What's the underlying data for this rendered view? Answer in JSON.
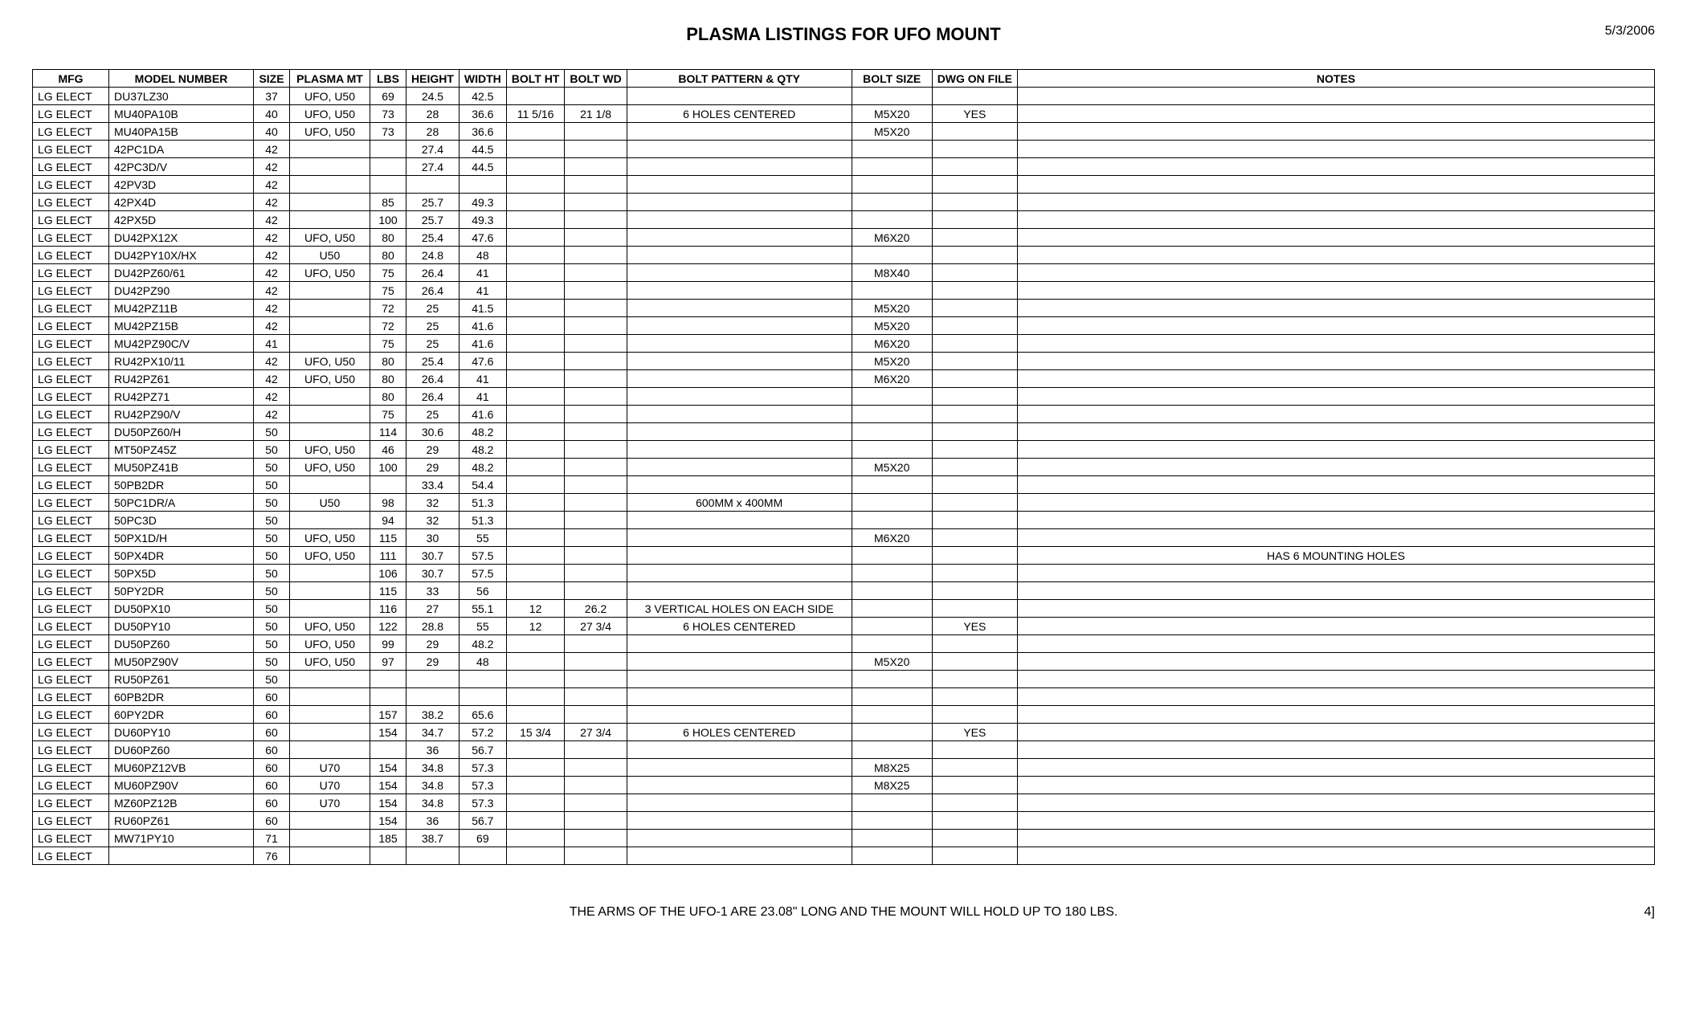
{
  "header": {
    "title": "PLASMA LISTINGS FOR UFO MOUNT",
    "date": "5/3/2006"
  },
  "footer": {
    "text": "THE ARMS OF THE UFO-1 ARE 23.08\" LONG AND THE MOUNT WILL HOLD UP TO 180 LBS.",
    "page": "4]"
  },
  "table": {
    "columns": [
      "MFG",
      "MODEL NUMBER",
      "SIZE",
      "PLASMA MT",
      "LBS",
      "HEIGHT",
      "WIDTH",
      "BOLT HT",
      "BOLT WD",
      "BOLT PATTERN & QTY",
      "BOLT SIZE",
      "DWG ON FILE",
      "NOTES"
    ],
    "align": [
      "l",
      "l",
      "c",
      "c",
      "c",
      "c",
      "c",
      "c",
      "c",
      "c",
      "c",
      "c",
      "c"
    ],
    "rows": [
      [
        "LG ELECT",
        "DU37LZ30",
        "37",
        "UFO, U50",
        "69",
        "24.5",
        "42.5",
        "",
        "",
        "",
        "",
        "",
        ""
      ],
      [
        "LG ELECT",
        "MU40PA10B",
        "40",
        "UFO, U50",
        "73",
        "28",
        "36.6",
        "11   5/16",
        "21 1/8",
        "6 HOLES CENTERED",
        "M5X20",
        "YES",
        ""
      ],
      [
        "LG ELECT",
        "MU40PA15B",
        "40",
        "UFO, U50",
        "73",
        "28",
        "36.6",
        "",
        "",
        "",
        "M5X20",
        "",
        ""
      ],
      [
        "LG ELECT",
        "42PC1DA",
        "42",
        "",
        "",
        "27.4",
        "44.5",
        "",
        "",
        "",
        "",
        "",
        ""
      ],
      [
        "LG ELECT",
        "42PC3D/V",
        "42",
        "",
        "",
        "27.4",
        "44.5",
        "",
        "",
        "",
        "",
        "",
        ""
      ],
      [
        "LG ELECT",
        "42PV3D",
        "42",
        "",
        "",
        "",
        "",
        "",
        "",
        "",
        "",
        "",
        ""
      ],
      [
        "LG ELECT",
        "42PX4D",
        "42",
        "",
        "85",
        "25.7",
        "49.3",
        "",
        "",
        "",
        "",
        "",
        ""
      ],
      [
        "LG ELECT",
        "42PX5D",
        "42",
        "",
        "100",
        "25.7",
        "49.3",
        "",
        "",
        "",
        "",
        "",
        ""
      ],
      [
        "LG ELECT",
        "DU42PX12X",
        "42",
        "UFO, U50",
        "80",
        "25.4",
        "47.6",
        "",
        "",
        "",
        "M6X20",
        "",
        ""
      ],
      [
        "LG ELECT",
        "DU42PY10X/HX",
        "42",
        "U50",
        "80",
        "24.8",
        "48",
        "",
        "",
        "",
        "",
        "",
        ""
      ],
      [
        "LG ELECT",
        "DU42PZ60/61",
        "42",
        "UFO, U50",
        "75",
        "26.4",
        "41",
        "",
        "",
        "",
        "M8X40",
        "",
        ""
      ],
      [
        "LG ELECT",
        "DU42PZ90",
        "42",
        "",
        "75",
        "26.4",
        "41",
        "",
        "",
        "",
        "",
        "",
        ""
      ],
      [
        "LG ELECT",
        "MU42PZ11B",
        "42",
        "",
        "72",
        "25",
        "41.5",
        "",
        "",
        "",
        "M5X20",
        "",
        ""
      ],
      [
        "LG ELECT",
        "MU42PZ15B",
        "42",
        "",
        "72",
        "25",
        "41.6",
        "",
        "",
        "",
        "M5X20",
        "",
        ""
      ],
      [
        "LG ELECT",
        "MU42PZ90C/V",
        "41",
        "",
        "75",
        "25",
        "41.6",
        "",
        "",
        "",
        "M6X20",
        "",
        ""
      ],
      [
        "LG ELECT",
        "RU42PX10/11",
        "42",
        "UFO, U50",
        "80",
        "25.4",
        "47.6",
        "",
        "",
        "",
        "M5X20",
        "",
        ""
      ],
      [
        "LG ELECT",
        "RU42PZ61",
        "42",
        "UFO, U50",
        "80",
        "26.4",
        "41",
        "",
        "",
        "",
        "M6X20",
        "",
        ""
      ],
      [
        "LG ELECT",
        "RU42PZ71",
        "42",
        "",
        "80",
        "26.4",
        "41",
        "",
        "",
        "",
        "",
        "",
        ""
      ],
      [
        "LG ELECT",
        "RU42PZ90/V",
        "42",
        "",
        "75",
        "25",
        "41.6",
        "",
        "",
        "",
        "",
        "",
        ""
      ],
      [
        "LG ELECT",
        "DU50PZ60/H",
        "50",
        "",
        "114",
        "30.6",
        "48.2",
        "",
        "",
        "",
        "",
        "",
        ""
      ],
      [
        "LG ELECT",
        "MT50PZ45Z",
        "50",
        "UFO, U50",
        "46",
        "29",
        "48.2",
        "",
        "",
        "",
        "",
        "",
        ""
      ],
      [
        "LG ELECT",
        "MU50PZ41B",
        "50",
        "UFO, U50",
        "100",
        "29",
        "48.2",
        "",
        "",
        "",
        "M5X20",
        "",
        ""
      ],
      [
        "LG ELECT",
        "50PB2DR",
        "50",
        "",
        "",
        "33.4",
        "54.4",
        "",
        "",
        "",
        "",
        "",
        ""
      ],
      [
        "LG ELECT",
        "50PC1DR/A",
        "50",
        "U50",
        "98",
        "32",
        "51.3",
        "",
        "",
        "600MM x 400MM",
        "",
        "",
        ""
      ],
      [
        "LG ELECT",
        "50PC3D",
        "50",
        "",
        "94",
        "32",
        "51.3",
        "",
        "",
        "",
        "",
        "",
        ""
      ],
      [
        "LG ELECT",
        "50PX1D/H",
        "50",
        "UFO, U50",
        "115",
        "30",
        "55",
        "",
        "",
        "",
        "M6X20",
        "",
        ""
      ],
      [
        "LG ELECT",
        "50PX4DR",
        "50",
        "UFO, U50",
        "111",
        "30.7",
        "57.5",
        "",
        "",
        "",
        "",
        "",
        "HAS 6 MOUNTING HOLES"
      ],
      [
        "LG ELECT",
        "50PX5D",
        "50",
        "",
        "106",
        "30.7",
        "57.5",
        "",
        "",
        "",
        "",
        "",
        ""
      ],
      [
        "LG ELECT",
        "50PY2DR",
        "50",
        "",
        "115",
        "33",
        "56",
        "",
        "",
        "",
        "",
        "",
        ""
      ],
      [
        "LG ELECT",
        "DU50PX10",
        "50",
        "",
        "116",
        "27",
        "55.1",
        "12",
        "26.2",
        "3 VERTICAL HOLES ON EACH SIDE",
        "",
        "",
        ""
      ],
      [
        "LG ELECT",
        "DU50PY10",
        "50",
        "UFO, U50",
        "122",
        "28.8",
        "55",
        "12",
        "27 3/4",
        "6 HOLES CENTERED",
        "",
        "YES",
        ""
      ],
      [
        "LG ELECT",
        "DU50PZ60",
        "50",
        "UFO, U50",
        "99",
        "29",
        "48.2",
        "",
        "",
        "",
        "",
        "",
        ""
      ],
      [
        "LG ELECT",
        "MU50PZ90V",
        "50",
        "UFO, U50",
        "97",
        "29",
        "48",
        "",
        "",
        "",
        "M5X20",
        "",
        ""
      ],
      [
        "LG ELECT",
        "RU50PZ61",
        "50",
        "",
        "",
        "",
        "",
        "",
        "",
        "",
        "",
        "",
        ""
      ],
      [
        "LG ELECT",
        "60PB2DR",
        "60",
        "",
        "",
        "",
        "",
        "",
        "",
        "",
        "",
        "",
        ""
      ],
      [
        "LG ELECT",
        "60PY2DR",
        "60",
        "",
        "157",
        "38.2",
        "65.6",
        "",
        "",
        "",
        "",
        "",
        ""
      ],
      [
        "LG ELECT",
        "DU60PY10",
        "60",
        "",
        "154",
        "34.7",
        "57.2",
        "15 3/4",
        "27 3/4",
        "6 HOLES CENTERED",
        "",
        "YES",
        ""
      ],
      [
        "LG ELECT",
        "DU60PZ60",
        "60",
        "",
        "",
        "36",
        "56.7",
        "",
        "",
        "",
        "",
        "",
        ""
      ],
      [
        "LG ELECT",
        "MU60PZ12VB",
        "60",
        "U70",
        "154",
        "34.8",
        "57.3",
        "",
        "",
        "",
        "M8X25",
        "",
        ""
      ],
      [
        "LG ELECT",
        "MU60PZ90V",
        "60",
        "U70",
        "154",
        "34.8",
        "57.3",
        "",
        "",
        "",
        "M8X25",
        "",
        ""
      ],
      [
        "LG ELECT",
        "MZ60PZ12B",
        "60",
        "U70",
        "154",
        "34.8",
        "57.3",
        "",
        "",
        "",
        "",
        "",
        ""
      ],
      [
        "LG ELECT",
        "RU60PZ61",
        "60",
        "",
        "154",
        "36",
        "56.7",
        "",
        "",
        "",
        "",
        "",
        ""
      ],
      [
        "LG ELECT",
        "MW71PY10",
        "71",
        "",
        "185",
        "38.7",
        "69",
        "",
        "",
        "",
        "",
        "",
        ""
      ],
      [
        "LG ELECT",
        "",
        "76",
        "",
        "",
        "",
        "",
        "",
        "",
        "",
        "",
        "",
        ""
      ]
    ]
  }
}
